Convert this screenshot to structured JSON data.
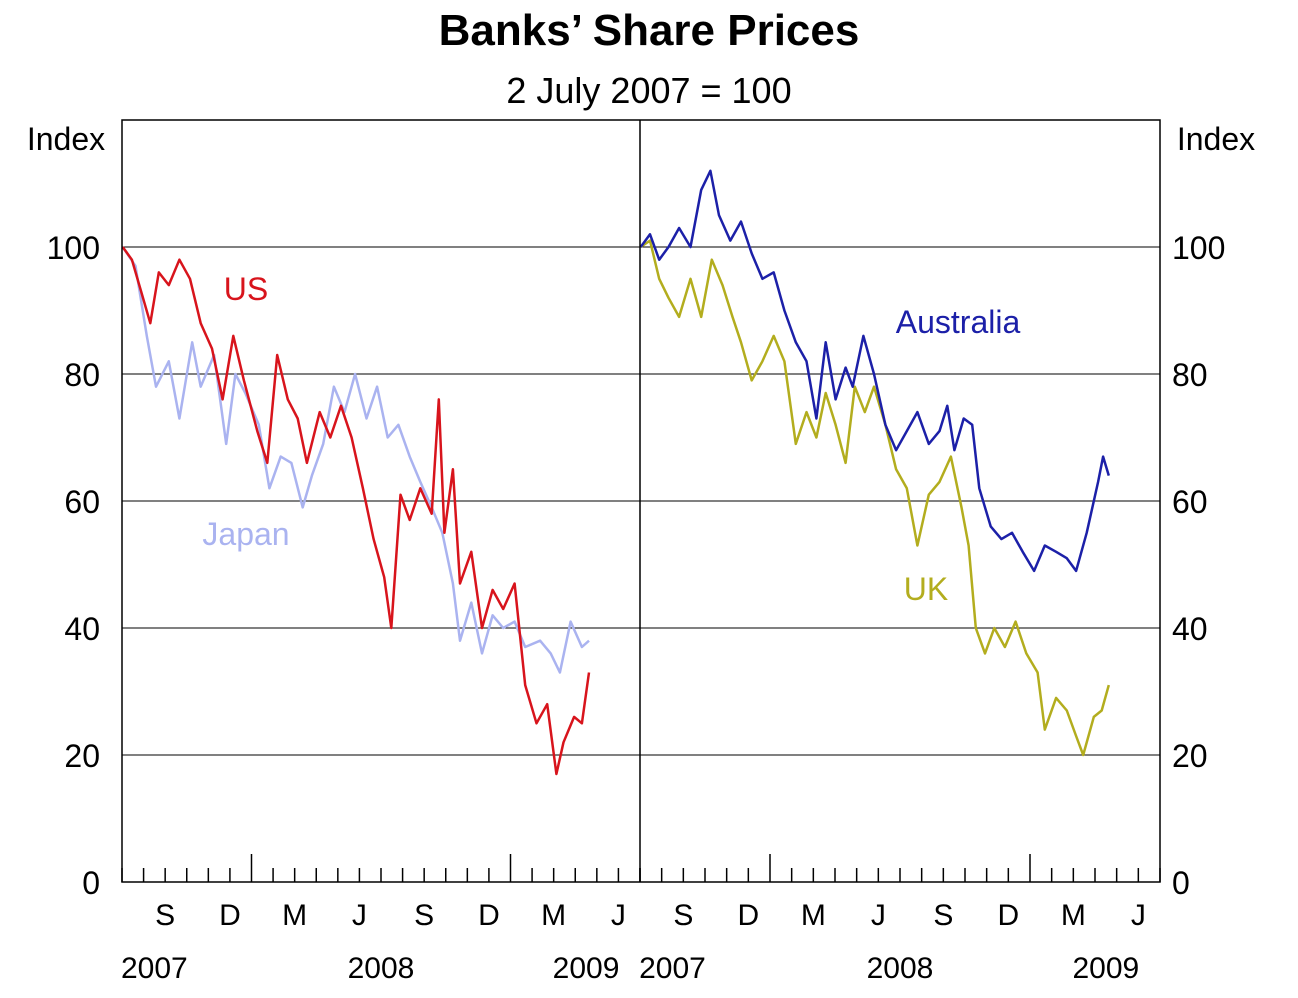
{
  "chart_data": {
    "type": "line",
    "title": "Banks’ Share Prices",
    "subtitle": "2 July 2007 = 100",
    "ylabel_left": "Index",
    "ylabel_right": "Index",
    "ylim": [
      0,
      120
    ],
    "yticks": [
      0,
      20,
      40,
      60,
      80,
      100
    ],
    "grid": true,
    "x_range": [
      "2007-07-01",
      "2009-07-01"
    ],
    "month_labels": [
      "S",
      "D",
      "M",
      "J",
      "S",
      "D",
      "M",
      "J"
    ],
    "year_labels": [
      "2007",
      "2008",
      "2009"
    ],
    "panels": [
      {
        "name": "left",
        "series": [
          {
            "name": "Japan",
            "color": "#aab3f0",
            "points": [
              [
                "2007-07-02",
                100
              ],
              [
                "2007-07-20",
                97
              ],
              [
                "2007-08-05",
                86
              ],
              [
                "2007-08-18",
                78
              ],
              [
                "2007-09-05",
                82
              ],
              [
                "2007-09-20",
                73
              ],
              [
                "2007-10-08",
                85
              ],
              [
                "2007-10-20",
                78
              ],
              [
                "2007-11-08",
                83
              ],
              [
                "2007-11-25",
                69
              ],
              [
                "2007-12-08",
                80
              ],
              [
                "2007-12-22",
                77
              ],
              [
                "2008-01-10",
                72
              ],
              [
                "2008-01-25",
                62
              ],
              [
                "2008-02-10",
                67
              ],
              [
                "2008-02-25",
                66
              ],
              [
                "2008-03-12",
                59
              ],
              [
                "2008-03-25",
                64
              ],
              [
                "2008-04-10",
                69
              ],
              [
                "2008-04-25",
                78
              ],
              [
                "2008-05-10",
                74
              ],
              [
                "2008-05-25",
                80
              ],
              [
                "2008-06-10",
                73
              ],
              [
                "2008-06-25",
                78
              ],
              [
                "2008-07-10",
                70
              ],
              [
                "2008-07-25",
                72
              ],
              [
                "2008-08-10",
                67
              ],
              [
                "2008-08-25",
                63
              ],
              [
                "2008-09-10",
                59
              ],
              [
                "2008-09-25",
                55
              ],
              [
                "2008-10-10",
                47
              ],
              [
                "2008-10-20",
                38
              ],
              [
                "2008-11-05",
                44
              ],
              [
                "2008-11-20",
                36
              ],
              [
                "2008-12-05",
                42
              ],
              [
                "2008-12-20",
                40
              ],
              [
                "2009-01-05",
                41
              ],
              [
                "2009-01-20",
                37
              ],
              [
                "2009-02-10",
                38
              ],
              [
                "2009-02-25",
                36
              ],
              [
                "2009-03-10",
                33
              ],
              [
                "2009-03-25",
                41
              ],
              [
                "2009-04-10",
                37
              ],
              [
                "2009-04-20",
                38
              ]
            ]
          },
          {
            "name": "US",
            "color": "#d8141c",
            "points": [
              [
                "2007-07-02",
                100
              ],
              [
                "2007-07-15",
                98
              ],
              [
                "2007-07-28",
                93
              ],
              [
                "2007-08-10",
                88
              ],
              [
                "2007-08-22",
                96
              ],
              [
                "2007-09-05",
                94
              ],
              [
                "2007-09-20",
                98
              ],
              [
                "2007-10-05",
                95
              ],
              [
                "2007-10-20",
                88
              ],
              [
                "2007-11-05",
                84
              ],
              [
                "2007-11-20",
                76
              ],
              [
                "2007-12-05",
                86
              ],
              [
                "2007-12-20",
                79
              ],
              [
                "2008-01-08",
                71
              ],
              [
                "2008-01-22",
                66
              ],
              [
                "2008-02-05",
                83
              ],
              [
                "2008-02-20",
                76
              ],
              [
                "2008-03-05",
                73
              ],
              [
                "2008-03-18",
                66
              ],
              [
                "2008-04-05",
                74
              ],
              [
                "2008-04-20",
                70
              ],
              [
                "2008-05-05",
                75
              ],
              [
                "2008-05-20",
                70
              ],
              [
                "2008-06-05",
                62
              ],
              [
                "2008-06-20",
                54
              ],
              [
                "2008-07-05",
                48
              ],
              [
                "2008-07-15",
                40
              ],
              [
                "2008-07-28",
                61
              ],
              [
                "2008-08-10",
                57
              ],
              [
                "2008-08-25",
                62
              ],
              [
                "2008-09-10",
                58
              ],
              [
                "2008-09-20",
                76
              ],
              [
                "2008-09-28",
                55
              ],
              [
                "2008-10-10",
                65
              ],
              [
                "2008-10-20",
                47
              ],
              [
                "2008-11-05",
                52
              ],
              [
                "2008-11-20",
                40
              ],
              [
                "2008-12-05",
                46
              ],
              [
                "2008-12-20",
                43
              ],
              [
                "2009-01-05",
                47
              ],
              [
                "2009-01-20",
                31
              ],
              [
                "2009-02-05",
                25
              ],
              [
                "2009-02-20",
                28
              ],
              [
                "2009-03-05",
                17
              ],
              [
                "2009-03-15",
                22
              ],
              [
                "2009-03-30",
                26
              ],
              [
                "2009-04-10",
                25
              ],
              [
                "2009-04-20",
                33
              ]
            ]
          }
        ],
        "labels": [
          {
            "text": "US",
            "series": "US",
            "color": "#d8141c"
          },
          {
            "text": "Japan",
            "series": "Japan",
            "color": "#aab3f0"
          }
        ]
      },
      {
        "name": "right",
        "series": [
          {
            "name": "UK",
            "color": "#b3ad1e",
            "points": [
              [
                "2007-07-02",
                100
              ],
              [
                "2007-07-15",
                101
              ],
              [
                "2007-07-28",
                95
              ],
              [
                "2007-08-10",
                92
              ],
              [
                "2007-08-25",
                89
              ],
              [
                "2007-09-10",
                95
              ],
              [
                "2007-09-25",
                89
              ],
              [
                "2007-10-10",
                98
              ],
              [
                "2007-10-25",
                94
              ],
              [
                "2007-11-08",
                89
              ],
              [
                "2007-11-20",
                85
              ],
              [
                "2007-12-05",
                79
              ],
              [
                "2007-12-20",
                82
              ],
              [
                "2008-01-05",
                86
              ],
              [
                "2008-01-20",
                82
              ],
              [
                "2008-02-05",
                69
              ],
              [
                "2008-02-20",
                74
              ],
              [
                "2008-03-05",
                70
              ],
              [
                "2008-03-18",
                77
              ],
              [
                "2008-04-01",
                72
              ],
              [
                "2008-04-15",
                66
              ],
              [
                "2008-04-28",
                78
              ],
              [
                "2008-05-12",
                74
              ],
              [
                "2008-05-25",
                78
              ],
              [
                "2008-06-10",
                72
              ],
              [
                "2008-06-25",
                65
              ],
              [
                "2008-07-10",
                62
              ],
              [
                "2008-07-25",
                53
              ],
              [
                "2008-08-10",
                61
              ],
              [
                "2008-08-25",
                63
              ],
              [
                "2008-09-10",
                67
              ],
              [
                "2008-09-25",
                59
              ],
              [
                "2008-10-05",
                53
              ],
              [
                "2008-10-15",
                40
              ],
              [
                "2008-10-28",
                36
              ],
              [
                "2008-11-10",
                40
              ],
              [
                "2008-11-25",
                37
              ],
              [
                "2008-12-10",
                41
              ],
              [
                "2008-12-25",
                36
              ],
              [
                "2009-01-10",
                33
              ],
              [
                "2009-01-20",
                24
              ],
              [
                "2009-02-05",
                29
              ],
              [
                "2009-02-20",
                27
              ],
              [
                "2009-03-05",
                23
              ],
              [
                "2009-03-15",
                20
              ],
              [
                "2009-03-30",
                26
              ],
              [
                "2009-04-10",
                27
              ],
              [
                "2009-04-20",
                31
              ]
            ]
          },
          {
            "name": "Australia",
            "color": "#1c20a8",
            "points": [
              [
                "2007-07-02",
                100
              ],
              [
                "2007-07-15",
                102
              ],
              [
                "2007-07-28",
                98
              ],
              [
                "2007-08-10",
                100
              ],
              [
                "2007-08-25",
                103
              ],
              [
                "2007-09-10",
                100
              ],
              [
                "2007-09-25",
                109
              ],
              [
                "2007-10-08",
                112
              ],
              [
                "2007-10-20",
                105
              ],
              [
                "2007-11-05",
                101
              ],
              [
                "2007-11-20",
                104
              ],
              [
                "2007-12-05",
                99
              ],
              [
                "2007-12-20",
                95
              ],
              [
                "2008-01-05",
                96
              ],
              [
                "2008-01-20",
                90
              ],
              [
                "2008-02-05",
                85
              ],
              [
                "2008-02-20",
                82
              ],
              [
                "2008-03-05",
                73
              ],
              [
                "2008-03-18",
                85
              ],
              [
                "2008-04-01",
                76
              ],
              [
                "2008-04-15",
                81
              ],
              [
                "2008-04-25",
                78
              ],
              [
                "2008-05-10",
                86
              ],
              [
                "2008-05-25",
                80
              ],
              [
                "2008-06-10",
                72
              ],
              [
                "2008-06-25",
                68
              ],
              [
                "2008-07-10",
                71
              ],
              [
                "2008-07-25",
                74
              ],
              [
                "2008-08-10",
                69
              ],
              [
                "2008-08-25",
                71
              ],
              [
                "2008-09-05",
                75
              ],
              [
                "2008-09-15",
                68
              ],
              [
                "2008-09-28",
                73
              ],
              [
                "2008-10-10",
                72
              ],
              [
                "2008-10-20",
                62
              ],
              [
                "2008-11-05",
                56
              ],
              [
                "2008-11-20",
                54
              ],
              [
                "2008-12-05",
                55
              ],
              [
                "2008-12-20",
                52
              ],
              [
                "2009-01-05",
                49
              ],
              [
                "2009-01-20",
                53
              ],
              [
                "2009-02-05",
                52
              ],
              [
                "2009-02-20",
                51
              ],
              [
                "2009-03-05",
                49
              ],
              [
                "2009-03-20",
                55
              ],
              [
                "2009-04-05",
                63
              ],
              [
                "2009-04-12",
                67
              ],
              [
                "2009-04-20",
                64
              ]
            ]
          }
        ],
        "labels": [
          {
            "text": "Australia",
            "series": "Australia",
            "color": "#1c20a8"
          },
          {
            "text": "UK",
            "series": "UK",
            "color": "#b3ad1e"
          }
        ]
      }
    ]
  }
}
